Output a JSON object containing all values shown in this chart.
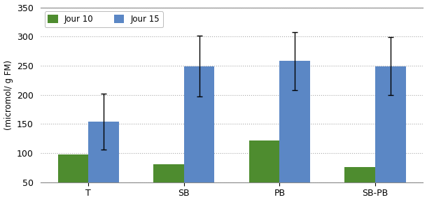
{
  "categories": [
    "T",
    "SB",
    "PB",
    "SB-PB"
  ],
  "jour10_values": [
    98,
    81,
    122,
    76
  ],
  "jour15_values": [
    154,
    249,
    258,
    249
  ],
  "jour10_errors": [
    0,
    0,
    0,
    0
  ],
  "jour15_errors": [
    48,
    52,
    50,
    50
  ],
  "jour10_color": "#4e8c2f",
  "jour15_color": "#5b87c5",
  "ylabel": "(micromol/ g FM)",
  "ylim": [
    50,
    350
  ],
  "yticks": [
    50,
    100,
    150,
    200,
    250,
    300,
    350
  ],
  "legend_labels": [
    "Jour 10",
    "Jour 15"
  ],
  "grid_color": "#aaaaaa",
  "background_color": "#ffffff",
  "bar_width": 0.32,
  "error_capsize": 3
}
